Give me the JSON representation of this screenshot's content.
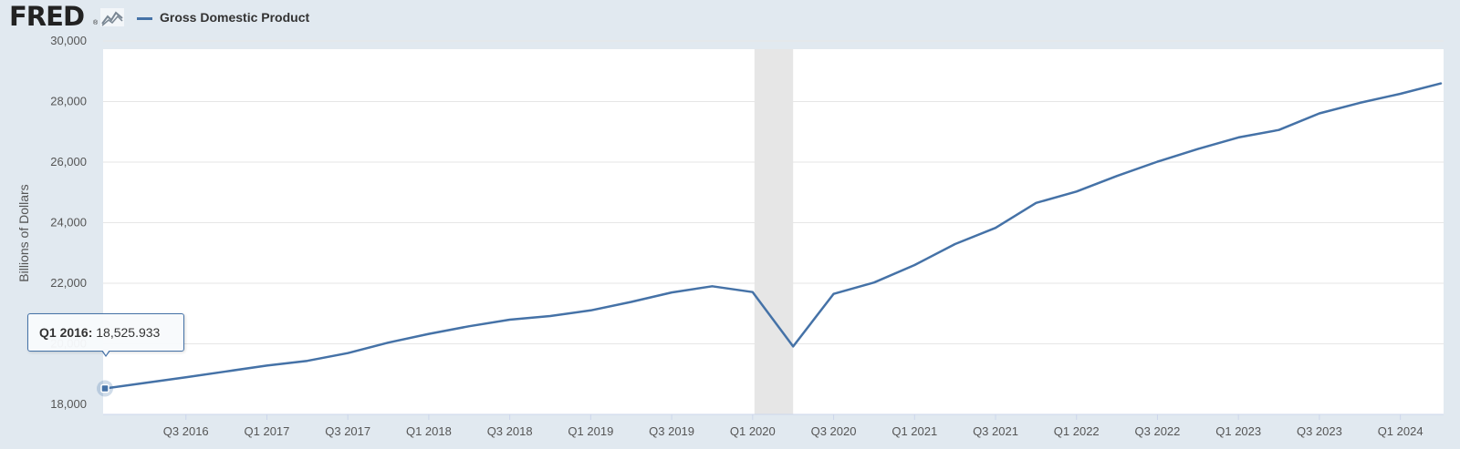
{
  "header": {
    "logo_text": "FRED",
    "logo_registered": "®",
    "legend_label": "Gross Domestic Product"
  },
  "tooltip": {
    "key": "Q1 2016:",
    "value": "18,525.933"
  },
  "colors": {
    "series": "#4572a7",
    "background": "#e1e9f0",
    "plot_background": "#ffffff",
    "recession_band": "#e6e6e6",
    "gridline": "#e6e6e6"
  },
  "chart_data": {
    "type": "line",
    "title": "",
    "xlabel": "",
    "ylabel": "Billions of Dollars",
    "ylim": [
      18000,
      30000
    ],
    "yticks": [
      18000,
      20000,
      22000,
      24000,
      26000,
      28000,
      30000
    ],
    "ytick_labels": [
      "18,000",
      "20,000",
      "22,000",
      "24,000",
      "26,000",
      "28,000",
      "30,000"
    ],
    "x_tick_labels": [
      "Q3 2016",
      "Q1 2017",
      "Q3 2017",
      "Q1 2018",
      "Q3 2018",
      "Q1 2019",
      "Q3 2019",
      "Q1 2020",
      "Q3 2020",
      "Q1 2021",
      "Q3 2021",
      "Q1 2022",
      "Q3 2022",
      "Q1 2023",
      "Q3 2023",
      "Q1 2024"
    ],
    "x_tick_index": [
      2,
      4,
      6,
      8,
      10,
      12,
      14,
      16,
      18,
      20,
      22,
      24,
      26,
      28,
      30,
      32
    ],
    "recession_band": [
      "Q1 2020",
      "Q2 2020"
    ],
    "grid": true,
    "legend": "top-left",
    "series": [
      {
        "name": "Gross Domestic Product",
        "x": [
          "Q1 2016",
          "Q2 2016",
          "Q3 2016",
          "Q4 2016",
          "Q1 2017",
          "Q2 2017",
          "Q3 2017",
          "Q4 2017",
          "Q1 2018",
          "Q2 2018",
          "Q3 2018",
          "Q4 2018",
          "Q1 2019",
          "Q2 2019",
          "Q3 2019",
          "Q4 2019",
          "Q1 2020",
          "Q2 2020",
          "Q3 2020",
          "Q4 2020",
          "Q1 2021",
          "Q2 2021",
          "Q3 2021",
          "Q4 2021",
          "Q1 2022",
          "Q2 2022",
          "Q3 2022",
          "Q4 2022",
          "Q1 2023",
          "Q2 2023",
          "Q3 2023",
          "Q4 2023",
          "Q1 2024",
          "Q2 2024"
        ],
        "values": [
          18525.933,
          18711,
          18892,
          19089,
          19280,
          19438,
          19692,
          20038,
          20329,
          20580,
          20798,
          20918,
          21105,
          21384,
          21695,
          21902,
          21707,
          19914,
          21647,
          22024,
          22600,
          23293,
          23829,
          24654,
          25029,
          25544,
          26016,
          26434,
          26814,
          27063,
          27610,
          27957,
          28255,
          28600
        ]
      }
    ]
  }
}
